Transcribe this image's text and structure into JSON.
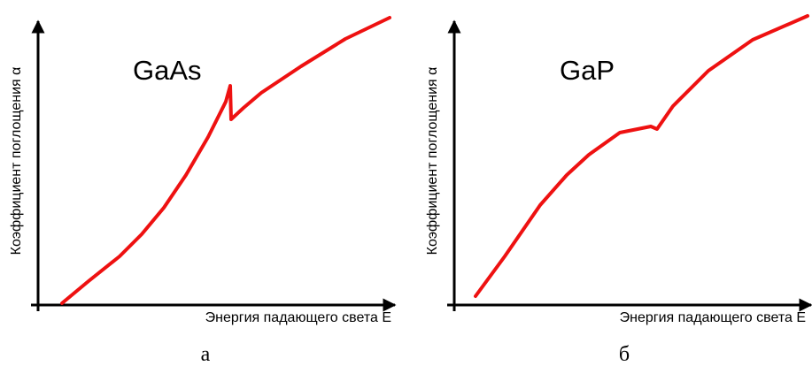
{
  "panels": [
    {
      "material": "GaAs",
      "y_axis_label": "Коэффициент поглощения α",
      "x_axis_label": "Энергия падающего света E",
      "caption": "а"
    },
    {
      "material": "GaP",
      "y_axis_label": "Коэффициент поглощения α",
      "x_axis_label": "Энергия падающего света E",
      "caption": "б"
    }
  ]
}
